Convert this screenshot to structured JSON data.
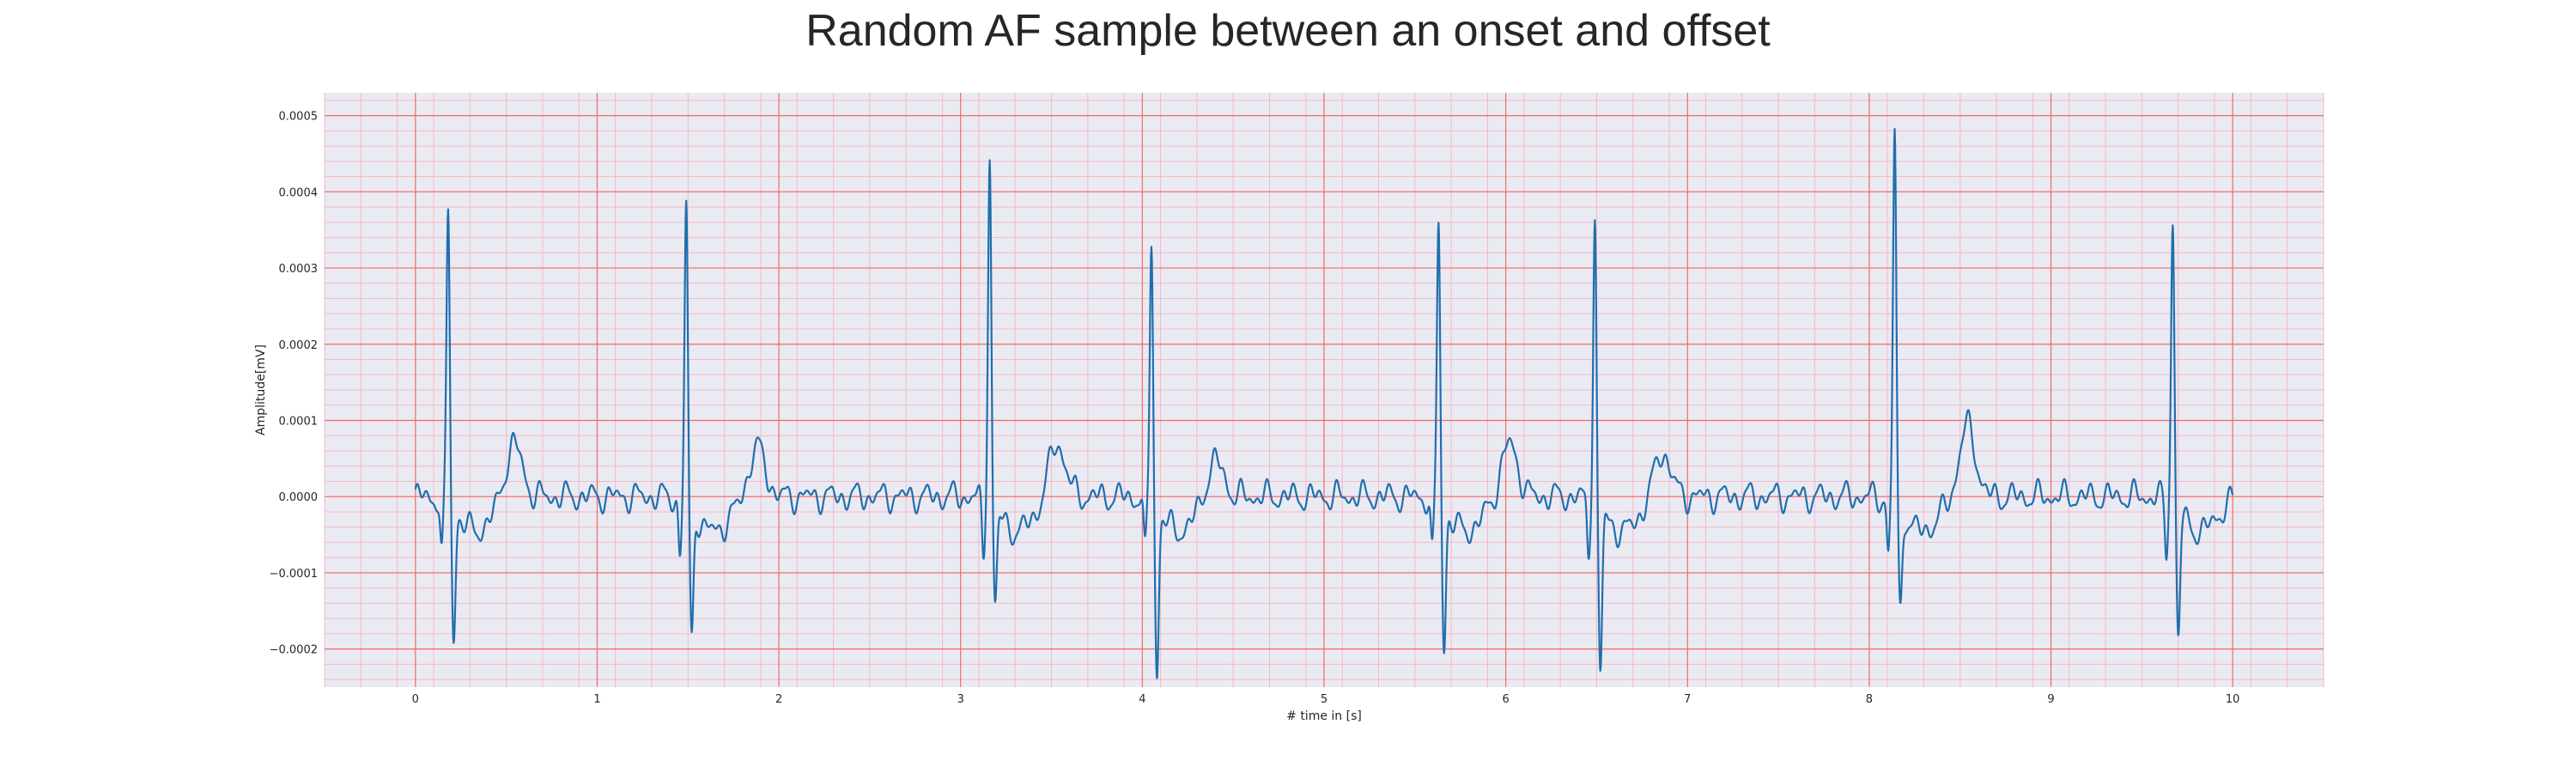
{
  "chart_data": {
    "type": "line",
    "title": "Random AF sample between an onset and offset",
    "xlabel": "# time in [s]",
    "ylabel": "Amplitude[mV]",
    "xlim": [
      -0.5,
      10.5
    ],
    "ylim": [
      -0.00025,
      0.00053
    ],
    "xticks": [
      0,
      1,
      2,
      3,
      4,
      5,
      6,
      7,
      8,
      9,
      10
    ],
    "xtick_labels": [
      "0",
      "1",
      "2",
      "3",
      "4",
      "5",
      "6",
      "7",
      "8",
      "9",
      "10"
    ],
    "yticks": [
      -0.0002,
      -0.0001,
      0.0,
      0.0001,
      0.0002,
      0.0003,
      0.0004,
      0.0005
    ],
    "ytick_labels": [
      "−0.0002",
      "−0.0001",
      "0.0000",
      "0.0001",
      "0.0002",
      "0.0003",
      "0.0004",
      "0.0005"
    ],
    "grid": true,
    "colors": {
      "line": "#1f6fad",
      "plot_background": "#eaeaf2",
      "major_grid": "#f06a6a",
      "minor_grid": "#f5b8c8"
    },
    "series": [
      {
        "beats": [
          {
            "t": 0.18,
            "r": 0.00039,
            "s": -0.00017
          },
          {
            "t": 1.49,
            "r": 0.00039,
            "s": -0.00017
          },
          {
            "t": 3.16,
            "r": 0.00046,
            "s": -0.000125
          },
          {
            "t": 4.05,
            "r": 0.00035,
            "s": -0.000215
          },
          {
            "t": 5.63,
            "r": 0.00037,
            "s": -0.00018
          },
          {
            "t": 6.49,
            "r": 0.00038,
            "s": -0.000215
          },
          {
            "t": 8.14,
            "r": 0.000495,
            "s": -0.000135
          },
          {
            "t": 9.67,
            "r": 0.00038,
            "s": -0.00017
          }
        ],
        "t_waves": [
          {
            "t": 0.54,
            "a": 7.2e-05
          },
          {
            "t": 1.88,
            "a": 6.5e-05
          },
          {
            "t": 3.53,
            "a": 7.2e-05
          },
          {
            "t": 4.4,
            "a": 5e-05
          },
          {
            "t": 6.02,
            "a": 7e-05
          },
          {
            "t": 6.86,
            "a": 6e-05
          },
          {
            "t": 8.54,
            "a": 9.3e-05
          }
        ],
        "x_start": 0.0,
        "x_end": 10.0
      }
    ]
  }
}
